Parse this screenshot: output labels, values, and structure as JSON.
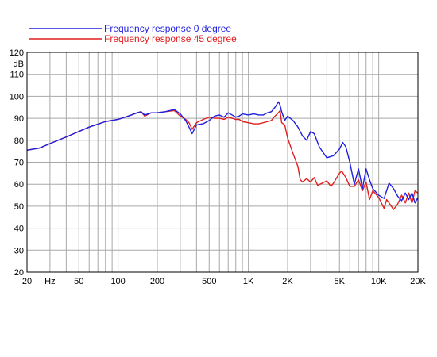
{
  "chart_data": {
    "type": "line",
    "x_scale": "log",
    "xlim": [
      20,
      20000
    ],
    "ylim": [
      20,
      120
    ],
    "grid": true,
    "legend_position": "top-left",
    "ylabel_unit": "dB",
    "xlabel_unit": "Hz",
    "x_tick_labels": [
      {
        "value": 20,
        "label": "20"
      },
      {
        "value": 50,
        "label": "50"
      },
      {
        "value": 100,
        "label": "100"
      },
      {
        "value": 200,
        "label": "200"
      },
      {
        "value": 500,
        "label": "500"
      },
      {
        "value": 1000,
        "label": "1K"
      },
      {
        "value": 2000,
        "label": "2K"
      },
      {
        "value": 5000,
        "label": "5K"
      },
      {
        "value": 10000,
        "label": "10K"
      },
      {
        "value": 20000,
        "label": "20K"
      }
    ],
    "y_ticks": [
      20,
      30,
      40,
      50,
      60,
      70,
      80,
      90,
      100,
      110,
      120
    ],
    "series": [
      {
        "name": "Frequency response 0 degree",
        "color": "#1f1fe0",
        "points": [
          [
            20,
            75.5
          ],
          [
            25,
            76.5
          ],
          [
            30,
            78.5
          ],
          [
            40,
            81.5
          ],
          [
            50,
            84
          ],
          [
            60,
            86
          ],
          [
            80,
            88.5
          ],
          [
            100,
            89.5
          ],
          [
            120,
            91
          ],
          [
            140,
            92.5
          ],
          [
            150,
            93
          ],
          [
            160,
            91.5
          ],
          [
            180,
            92.5
          ],
          [
            200,
            92.5
          ],
          [
            230,
            93
          ],
          [
            270,
            94
          ],
          [
            300,
            92
          ],
          [
            330,
            89
          ],
          [
            350,
            86
          ],
          [
            370,
            83
          ],
          [
            400,
            87
          ],
          [
            450,
            87.5
          ],
          [
            500,
            89
          ],
          [
            550,
            91
          ],
          [
            600,
            91.5
          ],
          [
            650,
            90.5
          ],
          [
            700,
            92.5
          ],
          [
            750,
            91.5
          ],
          [
            800,
            90.5
          ],
          [
            850,
            91
          ],
          [
            900,
            92
          ],
          [
            1000,
            91.5
          ],
          [
            1100,
            92
          ],
          [
            1200,
            91.5
          ],
          [
            1300,
            91.5
          ],
          [
            1400,
            92.5
          ],
          [
            1500,
            93
          ],
          [
            1600,
            95
          ],
          [
            1700,
            97.5
          ],
          [
            1750,
            96
          ],
          [
            1800,
            93
          ],
          [
            1900,
            89
          ],
          [
            2000,
            91
          ],
          [
            2200,
            89
          ],
          [
            2400,
            86
          ],
          [
            2600,
            82
          ],
          [
            2800,
            80
          ],
          [
            3000,
            84
          ],
          [
            3200,
            83
          ],
          [
            3500,
            77
          ],
          [
            4000,
            72
          ],
          [
            4500,
            73
          ],
          [
            5000,
            76
          ],
          [
            5300,
            79
          ],
          [
            5600,
            77
          ],
          [
            6000,
            70
          ],
          [
            6500,
            60
          ],
          [
            7000,
            67
          ],
          [
            7500,
            58
          ],
          [
            8000,
            67
          ],
          [
            8500,
            62
          ],
          [
            9000,
            58
          ],
          [
            10000,
            55
          ],
          [
            11000,
            53.5
          ],
          [
            12000,
            60.5
          ],
          [
            13000,
            58
          ],
          [
            14000,
            54.5
          ],
          [
            15000,
            52.5
          ],
          [
            16000,
            56
          ],
          [
            17000,
            53
          ],
          [
            18000,
            56
          ],
          [
            19000,
            51.5
          ],
          [
            20000,
            54
          ]
        ]
      },
      {
        "name": "Frequency response 45 degree",
        "color": "#e01f1f",
        "points": [
          [
            20,
            75.5
          ],
          [
            25,
            76.5
          ],
          [
            30,
            78.5
          ],
          [
            40,
            81.5
          ],
          [
            50,
            84
          ],
          [
            60,
            86
          ],
          [
            80,
            88.5
          ],
          [
            100,
            89.5
          ],
          [
            120,
            91
          ],
          [
            140,
            92.5
          ],
          [
            150,
            93
          ],
          [
            160,
            91
          ],
          [
            180,
            92.5
          ],
          [
            200,
            92.5
          ],
          [
            230,
            93
          ],
          [
            270,
            93.5
          ],
          [
            300,
            91
          ],
          [
            330,
            89.5
          ],
          [
            350,
            88
          ],
          [
            370,
            85
          ],
          [
            400,
            88
          ],
          [
            450,
            89.5
          ],
          [
            500,
            90.5
          ],
          [
            550,
            90
          ],
          [
            600,
            90
          ],
          [
            650,
            89.5
          ],
          [
            700,
            90.5
          ],
          [
            750,
            90
          ],
          [
            800,
            89.5
          ],
          [
            850,
            89.5
          ],
          [
            900,
            88.5
          ],
          [
            1000,
            88
          ],
          [
            1100,
            87.5
          ],
          [
            1200,
            87.5
          ],
          [
            1300,
            88
          ],
          [
            1400,
            88.5
          ],
          [
            1500,
            89
          ],
          [
            1600,
            91
          ],
          [
            1700,
            92.5
          ],
          [
            1750,
            93.5
          ],
          [
            1800,
            88
          ],
          [
            1900,
            87
          ],
          [
            2000,
            81
          ],
          [
            2200,
            74
          ],
          [
            2400,
            68
          ],
          [
            2500,
            62
          ],
          [
            2600,
            61
          ],
          [
            2800,
            62.5
          ],
          [
            3000,
            61
          ],
          [
            3200,
            63
          ],
          [
            3400,
            59.5
          ],
          [
            3700,
            60.5
          ],
          [
            4000,
            61.5
          ],
          [
            4300,
            59
          ],
          [
            4500,
            60.5
          ],
          [
            5000,
            65
          ],
          [
            5200,
            66
          ],
          [
            5600,
            63
          ],
          [
            6000,
            59
          ],
          [
            6500,
            59
          ],
          [
            7000,
            62
          ],
          [
            7500,
            57
          ],
          [
            8000,
            61
          ],
          [
            8500,
            53
          ],
          [
            9000,
            57
          ],
          [
            10000,
            54
          ],
          [
            11000,
            49
          ],
          [
            11500,
            53
          ],
          [
            12000,
            51.5
          ],
          [
            13000,
            48.5
          ],
          [
            14000,
            51
          ],
          [
            15000,
            55
          ],
          [
            16000,
            51.5
          ],
          [
            17000,
            56
          ],
          [
            18000,
            51.5
          ],
          [
            19000,
            57
          ],
          [
            20000,
            56
          ]
        ]
      }
    ]
  }
}
